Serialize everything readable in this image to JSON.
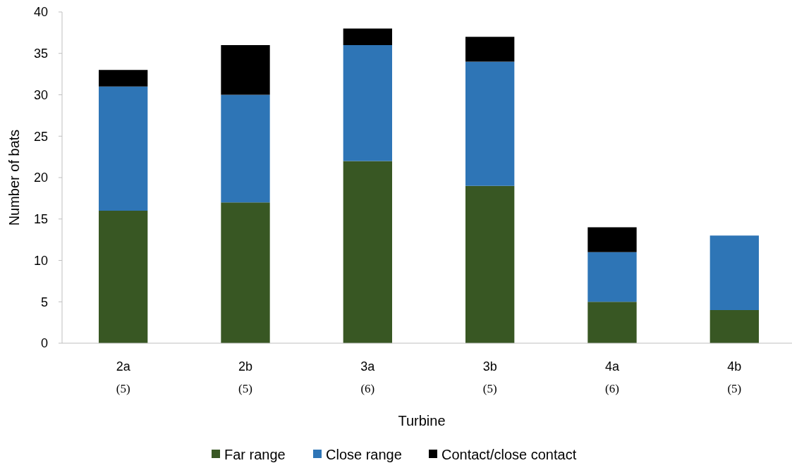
{
  "chart_data": {
    "type": "bar",
    "stacked": true,
    "xlabel": "Turbine",
    "ylabel": "Number of bats",
    "categories": [
      "2a\n(5)",
      "2b\n(5)",
      "3a\n(6)",
      "3b\n(5)",
      "4a\n(6)",
      "4b\n(5)"
    ],
    "series": [
      {
        "name": "Far range",
        "color": "#385723",
        "values": [
          16,
          17,
          22,
          19,
          5,
          4
        ]
      },
      {
        "name": "Close range",
        "color": "#2e75b6",
        "values": [
          15,
          13,
          14,
          15,
          6,
          9
        ]
      },
      {
        "name": "Contact/close contact",
        "color": "#000000",
        "values": [
          2,
          6,
          2,
          3,
          3,
          0
        ]
      }
    ],
    "ylim": [
      0,
      40
    ],
    "yticks": [
      0,
      5,
      10,
      15,
      20,
      25,
      30,
      35,
      40
    ],
    "grid": false,
    "legend": "bottom"
  }
}
